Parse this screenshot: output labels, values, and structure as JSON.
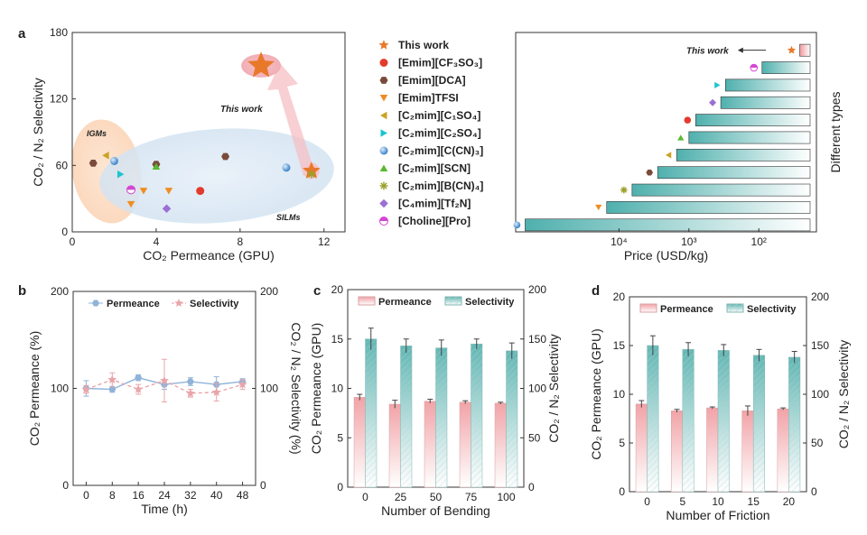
{
  "panel_labels": {
    "a": "a",
    "b": "b",
    "c": "c",
    "d": "d"
  },
  "legend": {
    "items": [
      {
        "label": "This work",
        "marker": "star",
        "color": "#e8792b"
      },
      {
        "label": "[Emim][CF₃SO₃]",
        "marker": "circle",
        "color": "#e23b2e"
      },
      {
        "label": "[Emim][DCA]",
        "marker": "hexagon",
        "color": "#7a4a3a"
      },
      {
        "label": "[Emim]TFSI",
        "marker": "triangle-down",
        "color": "#ef8d22"
      },
      {
        "label": "[C₂mim][C₁SO₄]",
        "marker": "triangle-left",
        "color": "#c9a227"
      },
      {
        "label": "[C₂mim][C₂SO₄]",
        "marker": "triangle-right",
        "color": "#1cc4cf"
      },
      {
        "label": "[C₂mim][C(CN)₃]",
        "marker": "sphere",
        "color": "#3d8fd6"
      },
      {
        "label": "[C₂mim][SCN]",
        "marker": "triangle-up",
        "color": "#59b82f"
      },
      {
        "label": "[C₂mim][B(CN)₄]",
        "marker": "asterisk",
        "color": "#9aa02a"
      },
      {
        "label": "[C₄mim][Tf₂N]",
        "marker": "diamond",
        "color": "#9b6fd3"
      },
      {
        "label": "[Choline][Pro]",
        "marker": "half-circle",
        "color": "#d447d4"
      }
    ]
  },
  "chart_data": [
    {
      "id": "a-left",
      "type": "scatter",
      "xlabel": "CO₂ Permeance (GPU)",
      "ylabel": "CO₂ / N₂ Selectivity",
      "xlim": [
        0,
        13
      ],
      "ylim": [
        0,
        180
      ],
      "xticks": [
        0,
        4,
        8,
        12
      ],
      "yticks": [
        60,
        120,
        180
      ],
      "annotations": {
        "igms": "IGMs",
        "silms": "SILMs",
        "this_work": "This work"
      },
      "points": [
        {
          "x": 9.0,
          "y": 150,
          "m": "star",
          "c": "#e8792b",
          "s": 12
        },
        {
          "x": 11.4,
          "y": 55,
          "m": "star",
          "c": "#e8792b",
          "s": 8
        },
        {
          "x": 6.1,
          "y": 37,
          "m": "circle",
          "c": "#e23b2e"
        },
        {
          "x": 1.0,
          "y": 62,
          "m": "hexagon",
          "c": "#7a4a3a"
        },
        {
          "x": 4.0,
          "y": 61,
          "m": "hexagon",
          "c": "#7a4a3a"
        },
        {
          "x": 7.3,
          "y": 68,
          "m": "hexagon",
          "c": "#7a4a3a"
        },
        {
          "x": 2.8,
          "y": 25,
          "m": "triangle-down",
          "c": "#ef8d22"
        },
        {
          "x": 3.4,
          "y": 37,
          "m": "triangle-down",
          "c": "#ef8d22"
        },
        {
          "x": 4.6,
          "y": 37,
          "m": "triangle-down",
          "c": "#ef8d22"
        },
        {
          "x": 1.6,
          "y": 69,
          "m": "triangle-left",
          "c": "#c9a227"
        },
        {
          "x": 2.3,
          "y": 52,
          "m": "triangle-right",
          "c": "#1cc4cf"
        },
        {
          "x": 2.0,
          "y": 64,
          "m": "sphere",
          "c": "#3d8fd6"
        },
        {
          "x": 10.2,
          "y": 58,
          "m": "sphere",
          "c": "#3d8fd6"
        },
        {
          "x": 4.0,
          "y": 59,
          "m": "triangle-up",
          "c": "#59b82f"
        },
        {
          "x": 11.4,
          "y": 52,
          "m": "asterisk",
          "c": "#9aa02a"
        },
        {
          "x": 4.5,
          "y": 21,
          "m": "diamond",
          "c": "#9b6fd3"
        },
        {
          "x": 2.8,
          "y": 38,
          "m": "half-circle",
          "c": "#d447d4"
        }
      ]
    },
    {
      "id": "a-right",
      "type": "bar",
      "orientation": "horizontal",
      "xlabel": "Price (USD/kg)",
      "ylabel": "Different types",
      "xscale": "log-reversed",
      "xlim": [
        300000,
        15
      ],
      "xticks": [
        {
          "v": 10000,
          "label": "10⁴"
        },
        {
          "v": 1000,
          "label": "10³"
        },
        {
          "v": 100,
          "label": "10²"
        }
      ],
      "annotation": "This work",
      "categories": [
        "This work",
        "[Choline][Pro]",
        "[C₂mim][C₂SO₄]",
        "[C₄mim][Tf₂N]",
        "[Emim][CF₃SO₃]",
        "[C₂mim][SCN]",
        "[C₂mim][C₁SO₄]",
        "[Emim][DCA]",
        "[C₂mim][B(CN)₄]",
        "[Emim]TFSI",
        "[C₂mim][C(CN)₃]"
      ],
      "values": [
        26,
        90,
        300,
        350,
        800,
        1000,
        1500,
        2800,
        6500,
        15000,
        220000
      ],
      "markers": [
        {
          "m": "star",
          "c": "#e8792b"
        },
        {
          "m": "half-circle",
          "c": "#d447d4"
        },
        {
          "m": "triangle-right",
          "c": "#1cc4cf"
        },
        {
          "m": "diamond",
          "c": "#9b6fd3"
        },
        {
          "m": "circle",
          "c": "#e23b2e"
        },
        {
          "m": "triangle-up",
          "c": "#59b82f"
        },
        {
          "m": "triangle-left",
          "c": "#c9a227"
        },
        {
          "m": "hexagon",
          "c": "#7a4a3a"
        },
        {
          "m": "asterisk",
          "c": "#9aa02a"
        },
        {
          "m": "triangle-down",
          "c": "#ef8d22"
        },
        {
          "m": "sphere",
          "c": "#3d8fd6"
        }
      ]
    },
    {
      "id": "b",
      "type": "line",
      "xlabel": "Time (h)",
      "ylabel": "CO₂ Permeance (%)",
      "y2label": "CO₂ / N₂ Selectivity (%)",
      "xlim": [
        -4,
        52
      ],
      "ylim": [
        0,
        200
      ],
      "y2lim": [
        0,
        200
      ],
      "xticks": [
        0,
        8,
        16,
        24,
        32,
        40,
        48
      ],
      "yticks": [
        0,
        100,
        200
      ],
      "y2ticks": [
        0,
        100,
        200
      ],
      "x": [
        0,
        8,
        16,
        24,
        32,
        40,
        48
      ],
      "series": [
        {
          "name": "Permeance",
          "values": [
            100,
            99,
            111,
            104,
            107,
            104,
            107
          ],
          "err": [
            8,
            3,
            3,
            5,
            4,
            8,
            3
          ],
          "color": "#8fb3d9",
          "marker": "hexagon"
        },
        {
          "name": "Selectivity",
          "values": [
            99,
            109,
            99,
            108,
            95,
            96,
            104
          ],
          "err": [
            4,
            7,
            5,
            22,
            4,
            9,
            5
          ],
          "color": "#e8a5aa",
          "marker": "star"
        }
      ]
    },
    {
      "id": "c",
      "type": "bar",
      "xlabel": "Number of Bending",
      "ylabel": "CO₂ Permeance (GPU)",
      "y2label": "CO₂ / N₂ Selectivity",
      "ylim": [
        0,
        20
      ],
      "y2lim": [
        0,
        200
      ],
      "yticks": [
        0,
        5,
        10,
        15,
        20
      ],
      "y2ticks": [
        0,
        50,
        100,
        150,
        200
      ],
      "categories": [
        "0",
        "25",
        "50",
        "75",
        "100"
      ],
      "series": [
        {
          "name": "Permeance",
          "values": [
            9.1,
            8.4,
            8.7,
            8.6,
            8.5
          ],
          "err": [
            0.3,
            0.4,
            0.2,
            0.15,
            0.1
          ],
          "axis": "left"
        },
        {
          "name": "Selectivity",
          "values": [
            150,
            143,
            141,
            145,
            138
          ],
          "err": [
            11,
            7,
            8,
            5,
            8
          ],
          "axis": "right"
        }
      ]
    },
    {
      "id": "d",
      "type": "bar",
      "xlabel": "Number of Friction",
      "ylabel": "CO₂ Permeance (GPU)",
      "y2label": "CO₂ / N₂ Selectivity",
      "ylim": [
        0,
        20
      ],
      "y2lim": [
        0,
        200
      ],
      "yticks": [
        0,
        5,
        10,
        15,
        20
      ],
      "y2ticks": [
        0,
        50,
        100,
        150,
        200
      ],
      "categories": [
        "0",
        "5",
        "10",
        "15",
        "20"
      ],
      "series": [
        {
          "name": "Permeance",
          "values": [
            9.0,
            8.3,
            8.6,
            8.3,
            8.5
          ],
          "err": [
            0.35,
            0.15,
            0.1,
            0.5,
            0.1
          ],
          "axis": "left"
        },
        {
          "name": "Selectivity",
          "values": [
            150,
            146,
            145,
            140,
            138
          ],
          "err": [
            10,
            7,
            6,
            6,
            6
          ],
          "axis": "right"
        }
      ]
    }
  ]
}
